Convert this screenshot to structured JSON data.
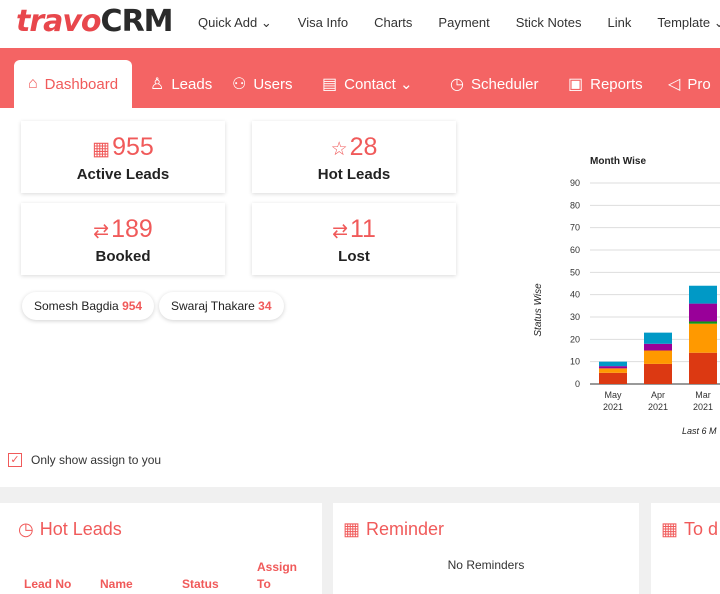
{
  "brand": {
    "logo_part1": "travo",
    "logo_part2": "CRM"
  },
  "topmenu": [
    "Quick Add ⌄",
    "Visa Info",
    "Charts",
    "Payment",
    "Stick Notes",
    "Link",
    "Template ⌄"
  ],
  "nav": {
    "dashboard": "Dashboard",
    "leads": "Leads",
    "users": "Users",
    "contact": "Contact ⌄",
    "scheduler": "Scheduler",
    "reports": "Reports",
    "pro": "Pro"
  },
  "cards": [
    {
      "value": "955",
      "label": "Active Leads",
      "icon": "calendar-icon"
    },
    {
      "value": "28",
      "label": "Hot Leads",
      "icon": "star-icon"
    },
    {
      "value": "189",
      "label": "Booked",
      "icon": "exchange-icon"
    },
    {
      "value": "11",
      "label": "Lost",
      "icon": "exchange-icon"
    }
  ],
  "users": [
    {
      "name": "Somesh Bagdia",
      "count": "954"
    },
    {
      "name": "Swaraj Thakare",
      "count": "34"
    }
  ],
  "filter": {
    "label": "Only show assign to you",
    "checked": true
  },
  "chart_data": {
    "type": "bar",
    "stacked": true,
    "title": "Month Wise",
    "ylabel": "Status Wise",
    "xlabel": "Last 6 M",
    "ylim": [
      0,
      90
    ],
    "yticks": [
      0,
      10,
      20,
      30,
      40,
      50,
      60,
      70,
      80,
      90
    ],
    "categories": [
      "May 2021",
      "Apr 2021",
      "Mar 2021"
    ],
    "category_lines": [
      [
        "May",
        "2021"
      ],
      [
        "Apr",
        "2021"
      ],
      [
        "Mar",
        "2021"
      ]
    ],
    "series": [
      {
        "color": "#dc3912",
        "values": [
          5,
          9,
          14
        ]
      },
      {
        "color": "#ff9900",
        "values": [
          2,
          6,
          13
        ]
      },
      {
        "color": "#109618",
        "values": [
          0,
          0,
          1
        ]
      },
      {
        "color": "#990099",
        "values": [
          1,
          3,
          8
        ]
      },
      {
        "color": "#0099c6",
        "values": [
          2,
          5,
          8
        ]
      }
    ],
    "grid": true
  },
  "panels": {
    "hot_leads": {
      "title": "Hot Leads",
      "columns": [
        "Lead No",
        "Name",
        "Status",
        "Assign",
        "To"
      ]
    },
    "reminder": {
      "title": "Reminder",
      "empty": "No Reminders"
    },
    "todo": {
      "title": "To d"
    }
  }
}
